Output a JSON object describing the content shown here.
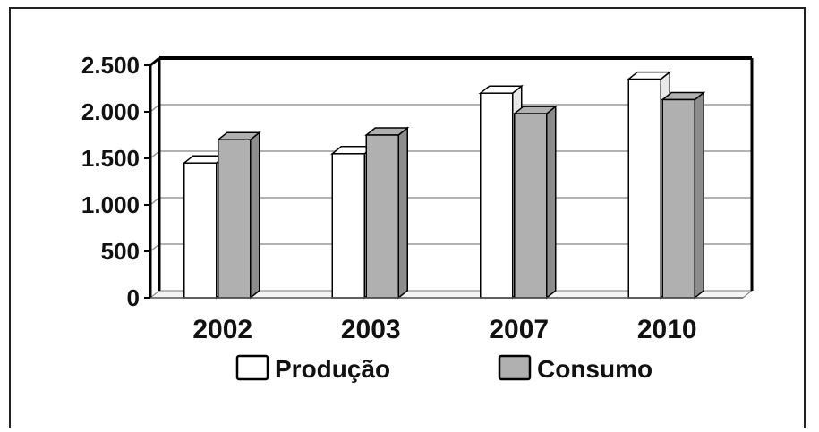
{
  "chart_data": {
    "type": "bar",
    "categories": [
      "2002",
      "2003",
      "2007",
      "2010"
    ],
    "series": [
      {
        "name": "Produção",
        "values": [
          1450,
          1550,
          2200,
          2350
        ],
        "color": "#ffffff"
      },
      {
        "name": "Consumo",
        "values": [
          1700,
          1750,
          1980,
          2130
        ],
        "color": "#b0b0b0"
      }
    ],
    "ylim": [
      0,
      2500
    ],
    "yticks": [
      0,
      500,
      1000,
      1500,
      2000,
      2500
    ],
    "ytick_labels": [
      "0",
      "500",
      "1.000",
      "1.500",
      "2.000",
      "2.500"
    ],
    "grid": true,
    "legend_position": "bottom-center",
    "title": "",
    "xlabel": "",
    "ylabel": ""
  }
}
